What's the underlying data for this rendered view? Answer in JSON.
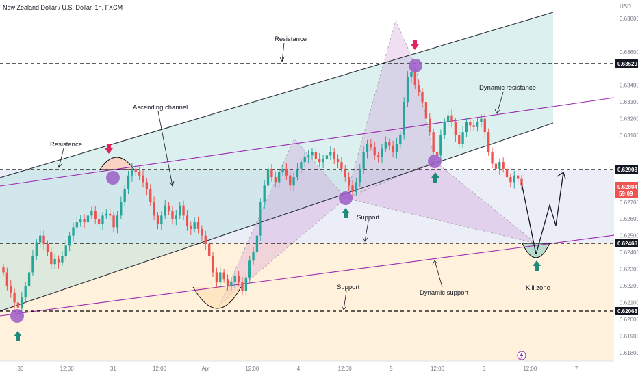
{
  "header": {
    "title": "New Zealand Dollar / U.S. Dollar, 1h, FXCM",
    "currency": "USD"
  },
  "price_tags": {
    "level_1": "0.63529",
    "level_2": "0.62908",
    "current": "0.62804",
    "countdown": "59:09",
    "level_3": "0.62466",
    "level_4": "0.62068"
  },
  "annotations": {
    "resistance_top": "Resistance",
    "resistance_left": "Resistance",
    "ascending_channel": "Ascending channel",
    "dynamic_resistance": "Dynamic resistance",
    "support_mid": "Support",
    "support_low": "Support",
    "dynamic_support": "Dynamic support",
    "kill_zone": "Kill zone"
  },
  "colors": {
    "bull": "#26a69a",
    "bear": "#ef5350",
    "channel_line": "#2a2e39",
    "dynamic_line": "#9c27b0",
    "level_line": "#000000",
    "marker": "#9c5cc8",
    "arrow_up": "#1e8a7a",
    "arrow_down": "#e0245e",
    "tag_bg": "#131722"
  },
  "chart_data": {
    "type": "candlestick",
    "title": "New Zealand Dollar / U.S. Dollar, 1h, FXCM",
    "ylabel": "USD",
    "ylim": [
      0.6175,
      0.6391
    ],
    "y_ticks": [
      "0.63800",
      "0.63600",
      "0.63400",
      "0.63300",
      "0.63200",
      "0.63100",
      "0.62900",
      "0.62700",
      "0.62600",
      "0.62500",
      "0.62400",
      "0.62300",
      "0.62200",
      "0.62100",
      "0.62000",
      "0.61900",
      "0.61800"
    ],
    "x_ticks": [
      "30",
      "12:00",
      "31",
      "12:00",
      "Apr",
      "12:00",
      "4",
      "12:00",
      "5",
      "12:00",
      "6",
      "12:00",
      "7"
    ],
    "horizontal_levels": [
      0.63529,
      0.62908,
      0.62466,
      0.62068
    ],
    "current_price": 0.62804,
    "closes": [
      0.6228,
      0.622,
      0.6216,
      0.621,
      0.6207,
      0.6213,
      0.622,
      0.6228,
      0.6238,
      0.6246,
      0.625,
      0.6245,
      0.624,
      0.6233,
      0.6236,
      0.6234,
      0.6238,
      0.6244,
      0.625,
      0.6255,
      0.6258,
      0.626,
      0.6258,
      0.6262,
      0.6265,
      0.626,
      0.6257,
      0.6262,
      0.6263,
      0.6262,
      0.6255,
      0.6262,
      0.627,
      0.6278,
      0.6286,
      0.629,
      0.6288,
      0.6286,
      0.6282,
      0.6278,
      0.627,
      0.6262,
      0.6257,
      0.6262,
      0.6268,
      0.6265,
      0.626,
      0.6262,
      0.6268,
      0.6262,
      0.6256,
      0.6254,
      0.6258,
      0.6254,
      0.625,
      0.6245,
      0.6238,
      0.6228,
      0.6222,
      0.6228,
      0.6224,
      0.622,
      0.6222,
      0.6226,
      0.6222,
      0.6217,
      0.6225,
      0.6235,
      0.624,
      0.625,
      0.627,
      0.628,
      0.629,
      0.6285,
      0.6282,
      0.6288,
      0.629,
      0.6286,
      0.628,
      0.6285,
      0.629,
      0.6294,
      0.6297,
      0.6298,
      0.63,
      0.6296,
      0.6294,
      0.6296,
      0.6298,
      0.63,
      0.6296,
      0.6294,
      0.629,
      0.6285,
      0.628,
      0.6276,
      0.6282,
      0.629,
      0.63,
      0.6305,
      0.6303,
      0.6298,
      0.6297,
      0.6302,
      0.6306,
      0.6304,
      0.63,
      0.6305,
      0.631,
      0.633,
      0.6345,
      0.6348,
      0.634,
      0.6336,
      0.633,
      0.632,
      0.6312,
      0.63,
      0.6298,
      0.631,
      0.6318,
      0.6322,
      0.6318,
      0.631,
      0.6305,
      0.6312,
      0.6318,
      0.6316,
      0.6315,
      0.6318,
      0.632,
      0.6312,
      0.63,
      0.6293,
      0.629,
      0.6294,
      0.629,
      0.6285,
      0.6282,
      0.6286,
      0.6284,
      0.628
    ]
  }
}
